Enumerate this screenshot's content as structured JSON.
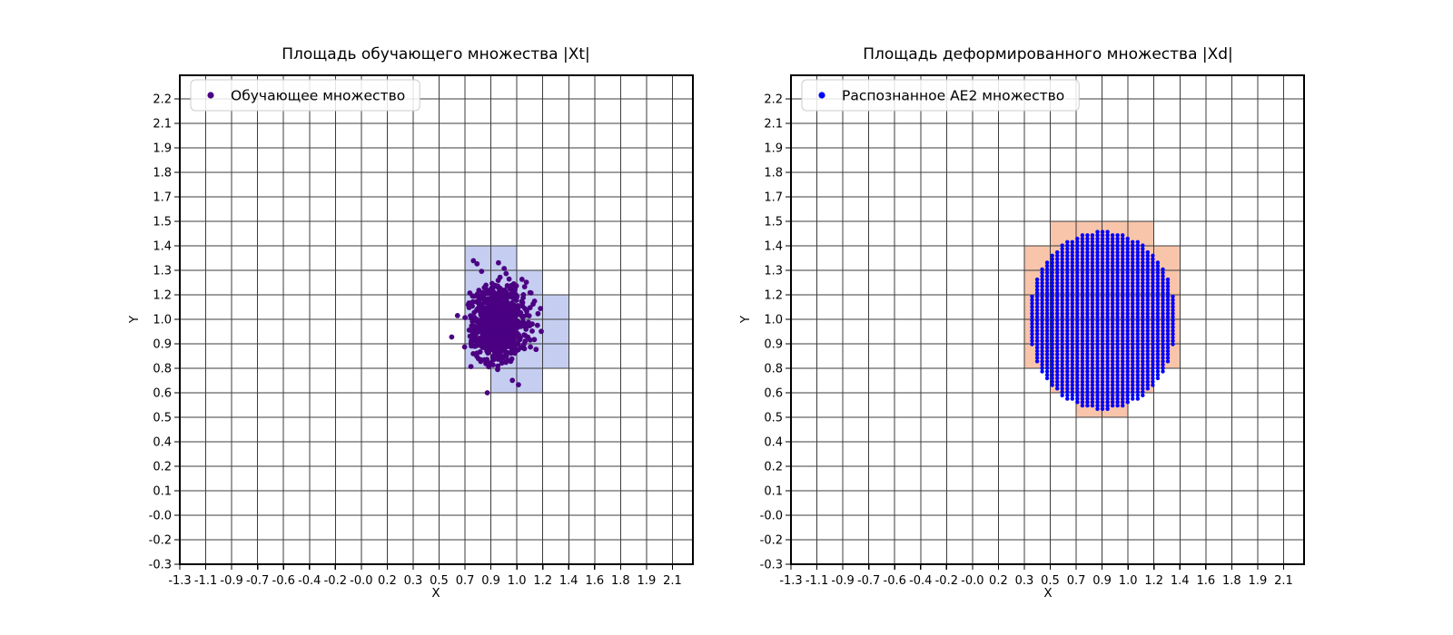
{
  "figure": {
    "background": "#ffffff"
  },
  "colors": {
    "grid_line": "#3c3c3c",
    "spine": "#000000",
    "legend_border": "#cccccc",
    "legend_background": "rgba(255,255,255,0.85)",
    "tick_text": "#000000"
  },
  "axis": {
    "x_start": -1.3,
    "x_step": 0.178947,
    "y_start": -0.3,
    "y_step": 0.131579
  },
  "chart_data": [
    {
      "type": "scatter",
      "title": "Площадь обучающего множества |Xt|",
      "xlabel": "X",
      "ylabel": "Y",
      "grid": true,
      "legend_position": "upper left",
      "x_tick_labels": [
        "-1.3",
        "-1.1",
        "-0.9",
        "-0.7",
        "-0.6",
        "-0.4",
        "-0.2",
        "-0.0",
        "0.2",
        "0.3",
        "0.5",
        "0.7",
        "0.9",
        "1.0",
        "1.2",
        "1.4",
        "1.6",
        "1.8",
        "1.9",
        "2.1"
      ],
      "y_tick_labels": [
        "-0.3",
        "-0.2",
        "-0.0",
        "0.1",
        "0.2",
        "0.4",
        "0.5",
        "0.6",
        "0.8",
        "0.9",
        "1.0",
        "1.2",
        "1.3",
        "1.4",
        "1.5",
        "1.7",
        "1.8",
        "1.9",
        "2.1",
        "2.2"
      ],
      "series": [
        {
          "name": "Обучающее множество",
          "kind": "gaussian_cluster",
          "color": "#4b0082",
          "center": [
            0.9,
            1.0
          ],
          "std": [
            0.09,
            0.1
          ],
          "n": 950,
          "point_radius": 2.9,
          "seed": 7
        }
      ],
      "shade_color": "#c5cef1",
      "shaded_cells": [
        {
          "x_range": [
            "0.7",
            "1.0"
          ],
          "y_range": [
            "1.3",
            "1.4"
          ],
          "xi": [
            11,
            13
          ],
          "yi": [
            12,
            13
          ]
        },
        {
          "x_range": [
            "0.7",
            "1.2"
          ],
          "y_range": [
            "1.2",
            "1.3"
          ],
          "xi": [
            11,
            14
          ],
          "yi": [
            11,
            12
          ]
        },
        {
          "x_range": [
            "0.7",
            "1.4"
          ],
          "y_range": [
            "0.8",
            "1.2"
          ],
          "xi": [
            11,
            15
          ],
          "yi": [
            8,
            11
          ]
        },
        {
          "x_range": [
            "0.9",
            "1.2"
          ],
          "y_range": [
            "0.6",
            "0.8"
          ],
          "xi": [
            12,
            14
          ],
          "yi": [
            7,
            8
          ]
        }
      ]
    },
    {
      "type": "scatter",
      "title": "Площадь деформированного множества |Xd|",
      "xlabel": "X",
      "ylabel": "Y",
      "grid": true,
      "legend_position": "upper left",
      "x_tick_labels": [
        "-1.3",
        "-1.1",
        "-0.9",
        "-0.7",
        "-0.6",
        "-0.4",
        "-0.2",
        "-0.0",
        "0.2",
        "0.3",
        "0.5",
        "0.7",
        "0.9",
        "1.0",
        "1.2",
        "1.4",
        "1.6",
        "1.8",
        "1.9",
        "2.1"
      ],
      "y_tick_labels": [
        "-0.3",
        "-0.2",
        "-0.0",
        "0.1",
        "0.2",
        "0.4",
        "0.5",
        "0.6",
        "0.8",
        "0.9",
        "1.0",
        "1.2",
        "1.3",
        "1.4",
        "1.5",
        "1.7",
        "1.8",
        "1.9",
        "2.1",
        "2.2"
      ],
      "series": [
        {
          "name": "Распознанное AE2 множество",
          "kind": "dot_grid_ellipse",
          "color": "#0000ff",
          "center": [
            0.85,
            1.01
          ],
          "radius": [
            0.51,
            0.48
          ],
          "step": [
            0.0347,
            0.0183
          ],
          "point_radius": 2.2
        }
      ],
      "shade_color": "#f8c4aa",
      "shaded_cells": [
        {
          "x_range": [
            "0.5",
            "1.2"
          ],
          "y_range": [
            "1.4",
            "1.5"
          ],
          "xi": [
            10,
            14
          ],
          "yi": [
            13,
            14
          ]
        },
        {
          "x_range": [
            "0.3",
            "1.4"
          ],
          "y_range": [
            "0.8",
            "1.4"
          ],
          "xi": [
            9,
            15
          ],
          "yi": [
            8,
            13
          ]
        },
        {
          "x_range": [
            "0.5",
            "1.2"
          ],
          "y_range": [
            "0.6",
            "0.8"
          ],
          "xi": [
            10,
            14
          ],
          "yi": [
            7,
            8
          ]
        },
        {
          "x_range": [
            "0.7",
            "1.0"
          ],
          "y_range": [
            "0.5",
            "0.6"
          ],
          "xi": [
            11,
            13
          ],
          "yi": [
            6,
            7
          ]
        }
      ]
    }
  ]
}
